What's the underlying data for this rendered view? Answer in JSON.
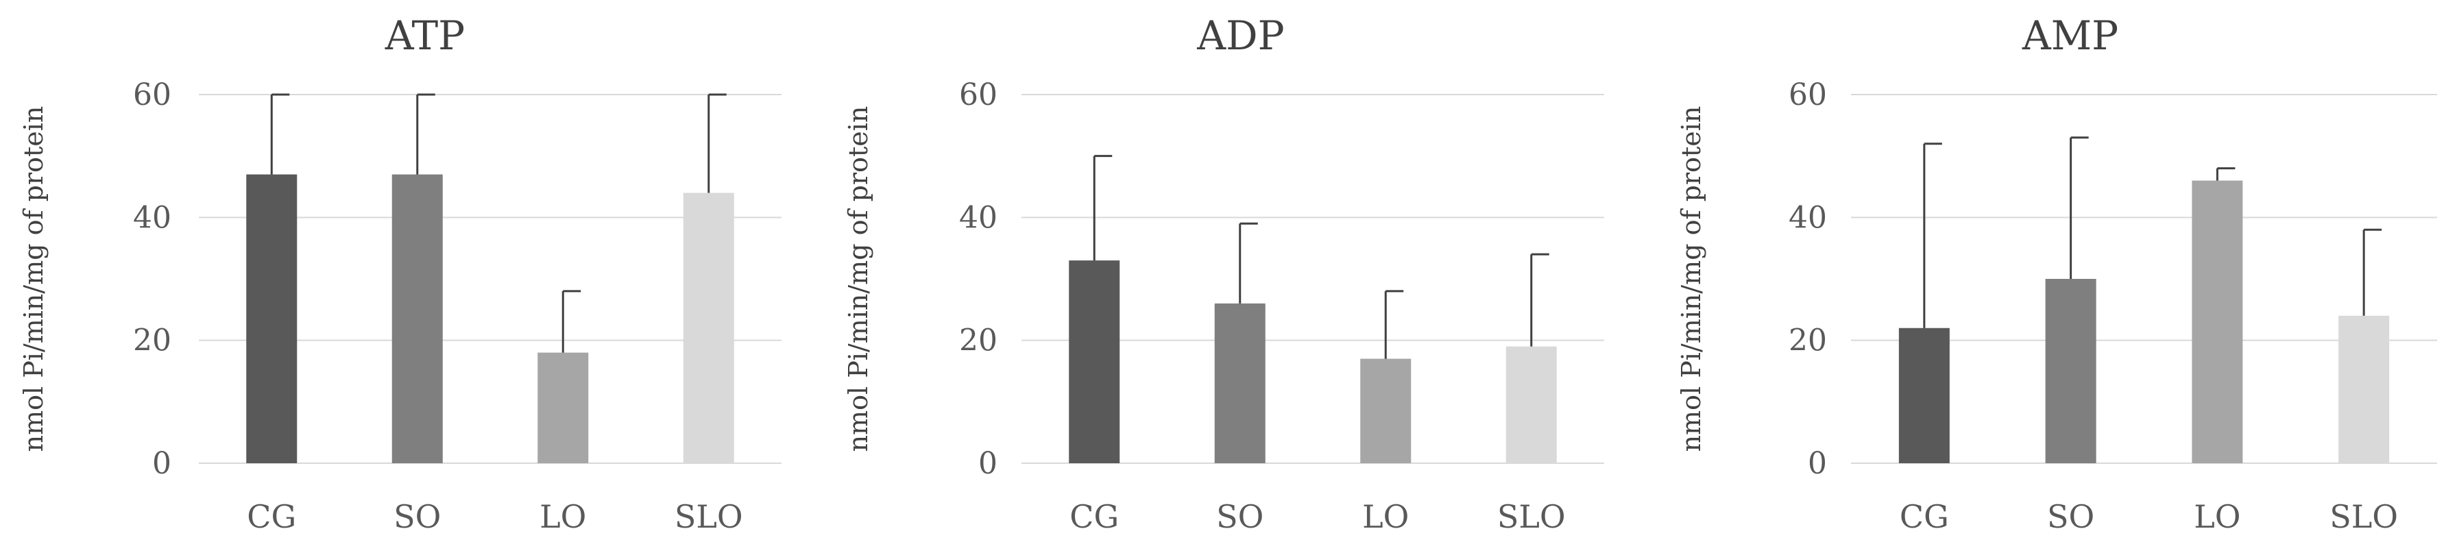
{
  "chart_data": [
    {
      "type": "bar",
      "title": "ATP",
      "ylabel": "nmol Pi/min/mg of protein",
      "xlabel": "",
      "categories": [
        "CG",
        "SO",
        "LO",
        "SLO"
      ],
      "values": [
        47,
        47,
        18,
        44
      ],
      "error": [
        14,
        14,
        10,
        16
      ],
      "ylim": [
        0,
        60
      ],
      "yticks": [
        0,
        20,
        40,
        60
      ],
      "grid": true,
      "colors": [
        "#595959",
        "#7f7f7f",
        "#a6a6a6",
        "#d9d9d9"
      ]
    },
    {
      "type": "bar",
      "title": "ADP",
      "ylabel": "nmol Pi/min/mg of protein",
      "xlabel": "",
      "categories": [
        "CG",
        "SO",
        "LO",
        "SLO"
      ],
      "values": [
        33,
        26,
        17,
        19
      ],
      "error": [
        17,
        13,
        11,
        15
      ],
      "ylim": [
        0,
        60
      ],
      "yticks": [
        0,
        20,
        40,
        60
      ],
      "grid": true,
      "colors": [
        "#595959",
        "#7f7f7f",
        "#a6a6a6",
        "#d9d9d9"
      ]
    },
    {
      "type": "bar",
      "title": "AMP",
      "ylabel": "nmol Pi/min/mg of protein",
      "xlabel": "",
      "categories": [
        "CG",
        "SO",
        "LO",
        "SLO"
      ],
      "values": [
        22,
        30,
        46,
        24
      ],
      "error": [
        30,
        23,
        2,
        14
      ],
      "ylim": [
        0,
        60
      ],
      "yticks": [
        0,
        20,
        40,
        60
      ],
      "grid": true,
      "colors": [
        "#595959",
        "#7f7f7f",
        "#a6a6a6",
        "#d9d9d9"
      ]
    }
  ]
}
